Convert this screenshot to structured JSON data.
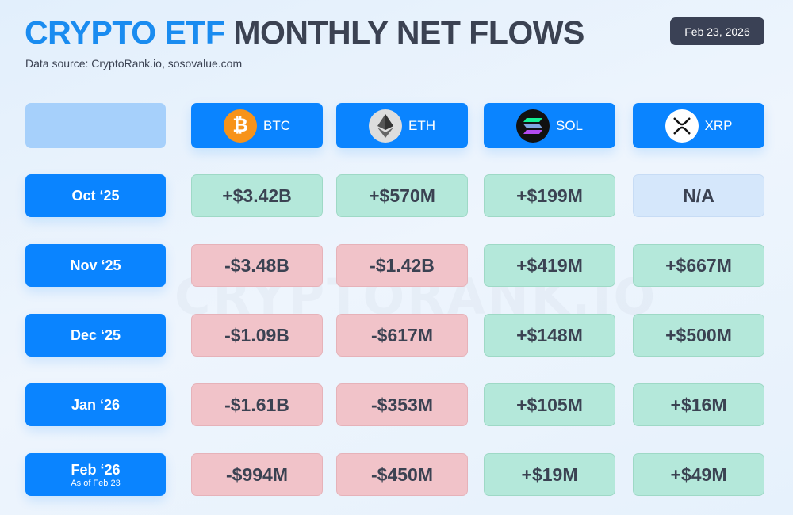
{
  "title": {
    "highlight": "CRYPTO ETF",
    "rest": "MONTHLY NET FLOWS"
  },
  "source": "Data source: CryptoRank.io, sosovalue.com",
  "date": "Feb 23, 2026",
  "watermark": "CRYPTORANK.IO",
  "colors": {
    "accent": "#0a84ff",
    "positive": "#b4e8da",
    "negative": "#f1c3c9",
    "na": "#d5e7fb"
  },
  "assets": [
    {
      "label": "BTC",
      "icon": "bitcoin-icon"
    },
    {
      "label": "ETH",
      "icon": "ethereum-icon"
    },
    {
      "label": "SOL",
      "icon": "solana-icon"
    },
    {
      "label": "XRP",
      "icon": "xrp-icon"
    }
  ],
  "rows": [
    {
      "month": "Oct ‘25",
      "note": "",
      "values": [
        "+$3.42B",
        "+$570M",
        "+$199M",
        "N/A"
      ]
    },
    {
      "month": "Nov ‘25",
      "note": "",
      "values": [
        "-$3.48B",
        "-$1.42B",
        "+$419M",
        "+$667M"
      ]
    },
    {
      "month": "Dec ‘25",
      "note": "",
      "values": [
        "-$1.09B",
        "-$617M",
        "+$148M",
        "+$500M"
      ]
    },
    {
      "month": "Jan ‘26",
      "note": "",
      "values": [
        "-$1.61B",
        "-$353M",
        "+$105M",
        "+$16M"
      ]
    },
    {
      "month": "Feb ‘26",
      "note": "As of Feb 23",
      "values": [
        "-$994M",
        "-$450M",
        "+$19M",
        "+$49M"
      ]
    }
  ]
}
